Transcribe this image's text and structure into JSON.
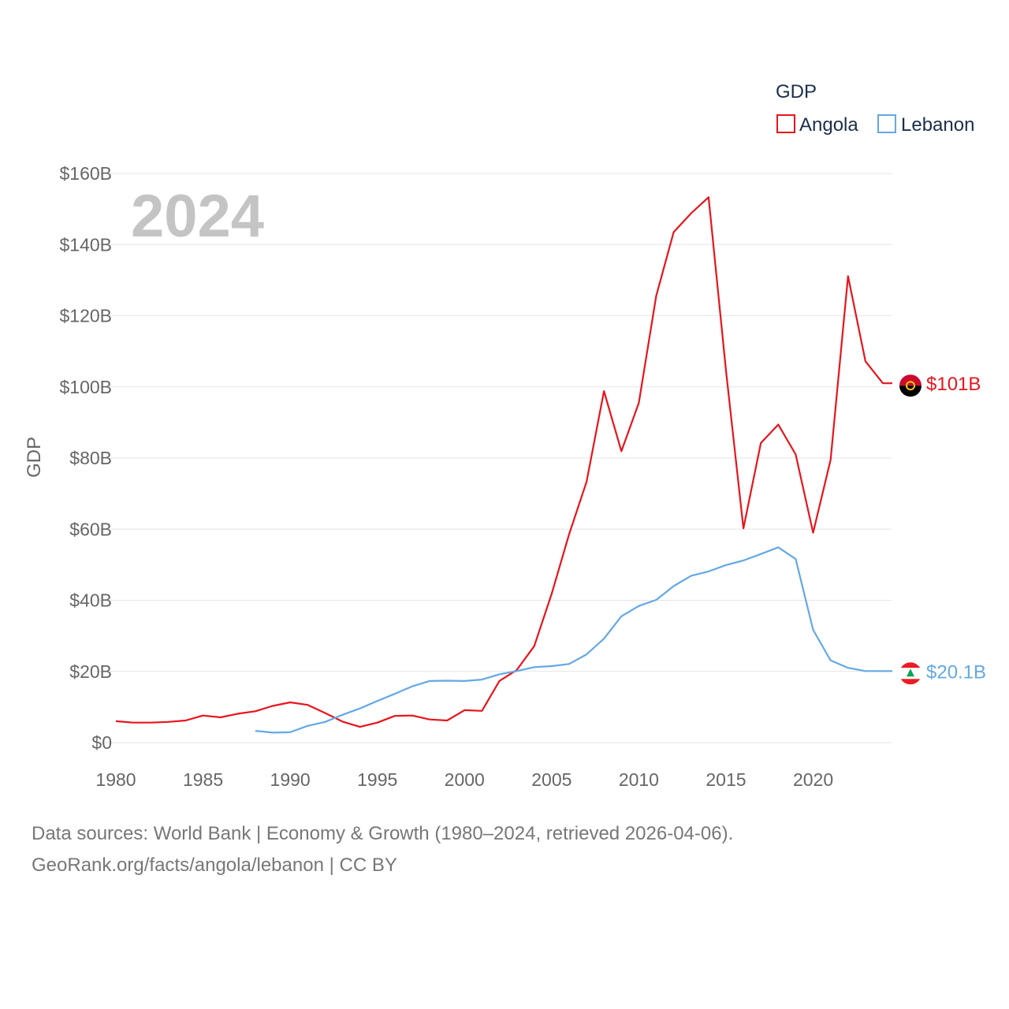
{
  "chart_data": {
    "type": "line",
    "year_label": "2024",
    "ylabel": "GDP",
    "xlabel": "",
    "ylim": [
      0,
      160
    ],
    "xlim": [
      1980,
      2024
    ],
    "y_ticks": [
      0,
      20,
      40,
      60,
      80,
      100,
      120,
      140,
      160
    ],
    "y_tick_labels": [
      "$0",
      "$20B",
      "$40B",
      "$60B",
      "$80B",
      "$100B",
      "$120B",
      "$140B",
      "$160B"
    ],
    "x_ticks": [
      1980,
      1985,
      1990,
      1995,
      2000,
      2005,
      2010,
      2015,
      2020
    ],
    "x_tick_labels": [
      "1980",
      "1985",
      "1990",
      "1995",
      "2000",
      "2005",
      "2010",
      "2015",
      "2020"
    ],
    "legend": {
      "title": "GDP",
      "placement": "top-right"
    },
    "series": [
      {
        "name": "Angola",
        "color": "#e8141c",
        "end_label": "$101B",
        "flag": "angola-flag",
        "x": [
          1980,
          1981,
          1982,
          1983,
          1984,
          1985,
          1986,
          1987,
          1988,
          1989,
          1990,
          1991,
          1992,
          1993,
          1994,
          1995,
          1996,
          1997,
          1998,
          1999,
          2000,
          2001,
          2002,
          2003,
          2004,
          2005,
          2006,
          2007,
          2008,
          2009,
          2010,
          2011,
          2012,
          2013,
          2014,
          2015,
          2016,
          2017,
          2018,
          2019,
          2020,
          2021,
          2022,
          2023,
          2024
        ],
        "values": [
          6.0,
          5.6,
          5.6,
          5.8,
          6.2,
          7.6,
          7.1,
          8.1,
          8.8,
          10.3,
          11.3,
          10.6,
          8.3,
          5.9,
          4.4,
          5.6,
          7.5,
          7.6,
          6.5,
          6.2,
          9.1,
          8.9,
          17.3,
          20.4,
          27.1,
          41.8,
          58.6,
          73.3,
          98.8,
          81.9,
          95.5,
          125.6,
          143.5,
          148.8,
          153.3,
          104.5,
          60.2,
          84.2,
          89.4,
          81.0,
          59.0,
          79.5,
          131.1,
          107.2,
          101.0
        ]
      },
      {
        "name": "Lebanon",
        "color": "#64a8e5",
        "end_label": "$20.1B",
        "flag": "lebanon-flag",
        "x": [
          1988,
          1989,
          1990,
          1991,
          1992,
          1993,
          1994,
          1995,
          1996,
          1997,
          1998,
          1999,
          2000,
          2001,
          2002,
          2003,
          2004,
          2005,
          2006,
          2007,
          2008,
          2009,
          2010,
          2011,
          2012,
          2013,
          2014,
          2015,
          2016,
          2017,
          2018,
          2019,
          2020,
          2021,
          2022,
          2023,
          2024
        ],
        "values": [
          3.3,
          2.8,
          2.9,
          4.7,
          5.8,
          7.8,
          9.6,
          11.7,
          13.7,
          15.8,
          17.3,
          17.4,
          17.3,
          17.7,
          19.2,
          20.1,
          21.2,
          21.5,
          22.1,
          24.8,
          29.2,
          35.5,
          38.4,
          40.1,
          44.0,
          46.9,
          48.1,
          49.9,
          51.2,
          53.0,
          54.9,
          51.6,
          31.7,
          23.1,
          21.0,
          20.1,
          20.1
        ]
      }
    ]
  },
  "footer": {
    "line1": "Data sources: World Bank | Economy & Growth (1980–2024, retrieved 2026-04-06).",
    "line2": "GeoRank.org/facts/angola/lebanon | CC BY"
  }
}
